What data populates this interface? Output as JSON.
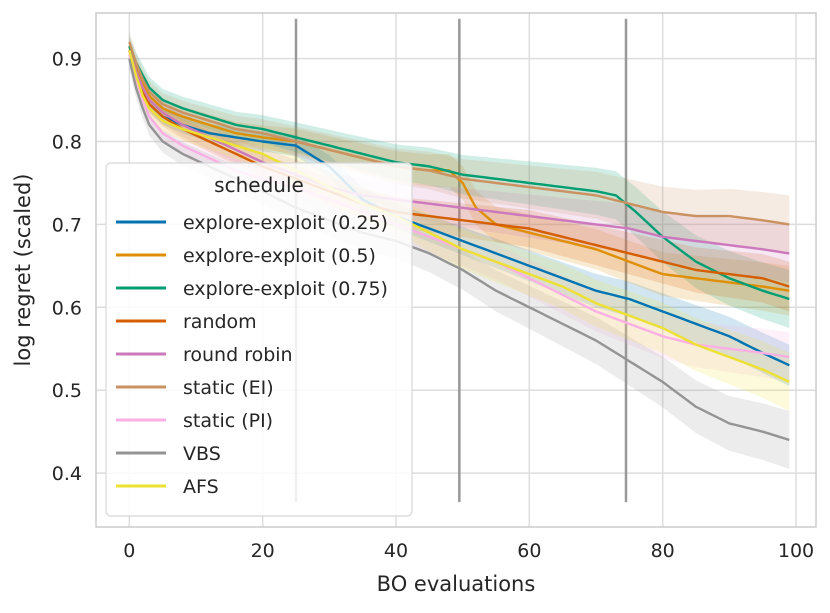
{
  "chart_data": {
    "type": "line",
    "xlabel": "BO evaluations",
    "ylabel": "log regret (scaled)",
    "xlim": [
      -5,
      103
    ],
    "ylim": [
      0.335,
      0.955
    ],
    "xticks": [
      0,
      20,
      40,
      60,
      80,
      100
    ],
    "yticks": [
      0.4,
      0.5,
      0.6,
      0.7,
      0.8,
      0.9
    ],
    "grid": true,
    "legend": {
      "title": "schedule",
      "position": "center-left"
    },
    "vlines": {
      "x": [
        25,
        49.5,
        74.5
      ],
      "ymin": 0.365,
      "ymax": 0.948,
      "color": "#999999"
    },
    "series": [
      {
        "name": "explore-exploit (0.25)",
        "color": "#0173b2",
        "band": 0.025,
        "x": [
          0,
          1,
          2,
          3,
          5,
          8,
          12,
          16,
          20,
          25,
          30,
          35,
          40,
          45,
          50,
          55,
          60,
          65,
          70,
          75,
          80,
          85,
          90,
          95,
          99
        ],
        "y": [
          0.91,
          0.885,
          0.86,
          0.845,
          0.83,
          0.82,
          0.81,
          0.805,
          0.8,
          0.795,
          0.77,
          0.73,
          0.71,
          0.695,
          0.68,
          0.665,
          0.65,
          0.635,
          0.62,
          0.61,
          0.595,
          0.58,
          0.565,
          0.545,
          0.53
        ]
      },
      {
        "name": "explore-exploit (0.5)",
        "color": "#de8f05",
        "band": 0.03,
        "x": [
          0,
          1,
          2,
          3,
          5,
          8,
          12,
          16,
          20,
          25,
          30,
          35,
          40,
          45,
          48,
          50,
          52,
          55,
          60,
          65,
          70,
          75,
          80,
          85,
          90,
          95,
          99
        ],
        "y": [
          0.915,
          0.89,
          0.87,
          0.855,
          0.84,
          0.83,
          0.82,
          0.81,
          0.805,
          0.8,
          0.79,
          0.78,
          0.77,
          0.765,
          0.765,
          0.75,
          0.72,
          0.7,
          0.69,
          0.68,
          0.67,
          0.655,
          0.64,
          0.635,
          0.63,
          0.625,
          0.62
        ]
      },
      {
        "name": "explore-exploit (0.75)",
        "color": "#029e73",
        "band": 0.035,
        "x": [
          0,
          1,
          2,
          3,
          5,
          8,
          12,
          16,
          20,
          25,
          30,
          35,
          40,
          45,
          50,
          55,
          60,
          65,
          70,
          73,
          76,
          80,
          85,
          90,
          95,
          99
        ],
        "y": [
          0.915,
          0.895,
          0.88,
          0.865,
          0.85,
          0.84,
          0.83,
          0.82,
          0.815,
          0.805,
          0.795,
          0.785,
          0.775,
          0.77,
          0.76,
          0.755,
          0.75,
          0.745,
          0.74,
          0.735,
          0.715,
          0.685,
          0.655,
          0.635,
          0.62,
          0.61
        ]
      },
      {
        "name": "random",
        "color": "#d55e00",
        "band": 0.03,
        "x": [
          0,
          1,
          2,
          3,
          5,
          8,
          12,
          16,
          20,
          25,
          30,
          35,
          40,
          45,
          50,
          55,
          60,
          65,
          70,
          75,
          80,
          85,
          90,
          95,
          99
        ],
        "y": [
          0.91,
          0.88,
          0.86,
          0.845,
          0.83,
          0.815,
          0.8,
          0.785,
          0.77,
          0.755,
          0.74,
          0.725,
          0.715,
          0.71,
          0.705,
          0.7,
          0.695,
          0.685,
          0.675,
          0.665,
          0.655,
          0.645,
          0.64,
          0.635,
          0.625
        ]
      },
      {
        "name": "round robin",
        "color": "#cc78bc",
        "band": 0.035,
        "x": [
          0,
          1,
          2,
          3,
          5,
          8,
          12,
          16,
          20,
          25,
          30,
          35,
          40,
          45,
          50,
          55,
          60,
          65,
          70,
          75,
          80,
          85,
          90,
          95,
          99
        ],
        "y": [
          0.91,
          0.885,
          0.865,
          0.85,
          0.835,
          0.82,
          0.805,
          0.79,
          0.775,
          0.76,
          0.745,
          0.735,
          0.73,
          0.725,
          0.72,
          0.715,
          0.71,
          0.705,
          0.7,
          0.695,
          0.685,
          0.68,
          0.675,
          0.67,
          0.665
        ]
      },
      {
        "name": "static (EI)",
        "color": "#ca9161",
        "band": 0.035,
        "x": [
          0,
          1,
          2,
          3,
          5,
          8,
          12,
          16,
          20,
          25,
          30,
          35,
          40,
          45,
          50,
          55,
          60,
          65,
          70,
          75,
          80,
          85,
          90,
          95,
          99
        ],
        "y": [
          0.92,
          0.895,
          0.875,
          0.86,
          0.845,
          0.835,
          0.825,
          0.815,
          0.81,
          0.8,
          0.79,
          0.78,
          0.77,
          0.765,
          0.755,
          0.75,
          0.745,
          0.74,
          0.735,
          0.725,
          0.715,
          0.71,
          0.71,
          0.705,
          0.7
        ]
      },
      {
        "name": "static (PI)",
        "color": "#fbafe4",
        "band": 0.03,
        "x": [
          0,
          1,
          2,
          3,
          5,
          8,
          12,
          16,
          20,
          25,
          30,
          35,
          40,
          45,
          50,
          55,
          60,
          65,
          70,
          75,
          80,
          85,
          90,
          95,
          99
        ],
        "y": [
          0.905,
          0.875,
          0.85,
          0.83,
          0.81,
          0.795,
          0.78,
          0.765,
          0.755,
          0.745,
          0.73,
          0.715,
          0.7,
          0.685,
          0.67,
          0.655,
          0.635,
          0.615,
          0.595,
          0.58,
          0.565,
          0.555,
          0.55,
          0.545,
          0.54
        ]
      },
      {
        "name": "VBS",
        "color": "#949494",
        "band": 0.035,
        "x": [
          0,
          1,
          2,
          3,
          5,
          8,
          12,
          16,
          20,
          25,
          30,
          35,
          40,
          45,
          50,
          55,
          60,
          65,
          70,
          75,
          80,
          85,
          90,
          95,
          99
        ],
        "y": [
          0.9,
          0.865,
          0.84,
          0.82,
          0.8,
          0.785,
          0.77,
          0.755,
          0.74,
          0.72,
          0.705,
          0.69,
          0.68,
          0.665,
          0.645,
          0.62,
          0.6,
          0.58,
          0.56,
          0.535,
          0.51,
          0.48,
          0.46,
          0.45,
          0.44
        ]
      },
      {
        "name": "AFS",
        "color": "#ece133",
        "band": 0.035,
        "x": [
          0,
          1,
          2,
          3,
          5,
          8,
          12,
          16,
          20,
          25,
          30,
          35,
          40,
          45,
          50,
          55,
          60,
          65,
          70,
          75,
          80,
          85,
          90,
          95,
          99
        ],
        "y": [
          0.91,
          0.88,
          0.855,
          0.84,
          0.825,
          0.815,
          0.805,
          0.795,
          0.785,
          0.765,
          0.745,
          0.725,
          0.71,
          0.69,
          0.67,
          0.655,
          0.64,
          0.625,
          0.605,
          0.59,
          0.575,
          0.555,
          0.54,
          0.525,
          0.51
        ]
      }
    ]
  }
}
